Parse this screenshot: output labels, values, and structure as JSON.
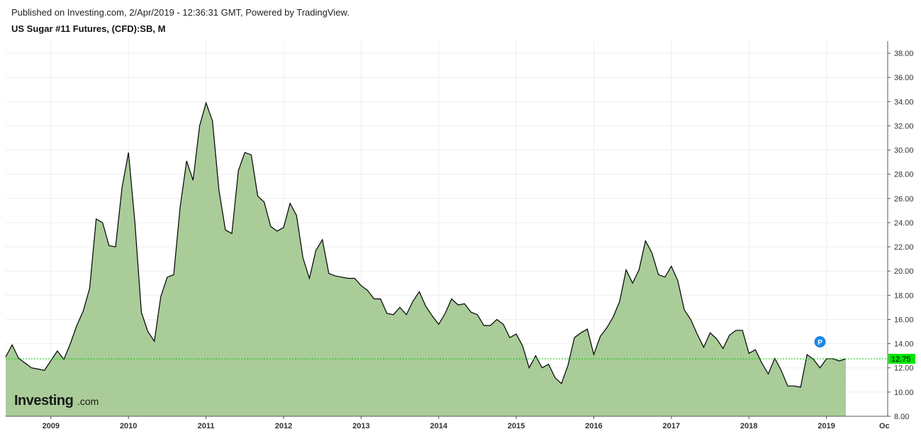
{
  "header": {
    "published": "Published on Investing.com, 2/Apr/2019 - 12:36:31 GMT, Powered by TradingView.",
    "symbol": "US Sugar #11 Futures, (CFD):SB, M"
  },
  "logo": {
    "main": "Investing",
    "suffix": ".com"
  },
  "marker": {
    "label": "P",
    "color": "#1e88e5",
    "date": "2018-12"
  },
  "colors": {
    "fill": "#a9cc99",
    "line": "#000000",
    "last_price_line": "#00cc00",
    "last_price_badge": "#00e600",
    "grid": "#eeeeee"
  },
  "chart_data": {
    "type": "area",
    "title": "US Sugar #11 Futures, (CFD):SB, M",
    "interval": "monthly",
    "last_price": "12.75",
    "ylim": [
      8,
      39
    ],
    "y_ticks": [
      "8.00",
      "10.00",
      "12.00",
      "14.00",
      "16.00",
      "18.00",
      "20.00",
      "22.00",
      "24.00",
      "26.00",
      "28.00",
      "30.00",
      "32.00",
      "34.00",
      "36.00",
      "38.00"
    ],
    "x_ticks": [
      "2009",
      "2010",
      "2011",
      "2012",
      "2013",
      "2014",
      "2015",
      "2016",
      "2017",
      "2018",
      "2019",
      "Oc"
    ],
    "grid": true,
    "series": [
      {
        "x": [
          "2008-06",
          "2008-07",
          "2008-08",
          "2008-09",
          "2008-10",
          "2008-11",
          "2008-12",
          "2009-01",
          "2009-02",
          "2009-03",
          "2009-04",
          "2009-05",
          "2009-06",
          "2009-07",
          "2009-08",
          "2009-09",
          "2009-10",
          "2009-11",
          "2009-12",
          "2010-01",
          "2010-02",
          "2010-03",
          "2010-04",
          "2010-05",
          "2010-06",
          "2010-07",
          "2010-08",
          "2010-09",
          "2010-10",
          "2010-11",
          "2010-12",
          "2011-01",
          "2011-02",
          "2011-03",
          "2011-04",
          "2011-05",
          "2011-06",
          "2011-07",
          "2011-08",
          "2011-09",
          "2011-10",
          "2011-11",
          "2011-12",
          "2012-01",
          "2012-02",
          "2012-03",
          "2012-04",
          "2012-05",
          "2012-06",
          "2012-07",
          "2012-08",
          "2012-09",
          "2012-10",
          "2012-11",
          "2012-12",
          "2013-01",
          "2013-02",
          "2013-03",
          "2013-04",
          "2013-05",
          "2013-06",
          "2013-07",
          "2013-08",
          "2013-09",
          "2013-10",
          "2013-11",
          "2013-12",
          "2014-01",
          "2014-02",
          "2014-03",
          "2014-04",
          "2014-05",
          "2014-06",
          "2014-07",
          "2014-08",
          "2014-09",
          "2014-10",
          "2014-11",
          "2014-12",
          "2015-01",
          "2015-02",
          "2015-03",
          "2015-04",
          "2015-05",
          "2015-06",
          "2015-07",
          "2015-08",
          "2015-09",
          "2015-10",
          "2015-11",
          "2015-12",
          "2016-01",
          "2016-02",
          "2016-03",
          "2016-04",
          "2016-05",
          "2016-06",
          "2016-07",
          "2016-08",
          "2016-09",
          "2016-10",
          "2016-11",
          "2016-12",
          "2017-01",
          "2017-02",
          "2017-03",
          "2017-04",
          "2017-05",
          "2017-06",
          "2017-07",
          "2017-08",
          "2017-09",
          "2017-10",
          "2017-11",
          "2017-12",
          "2018-01",
          "2018-02",
          "2018-03",
          "2018-04",
          "2018-05",
          "2018-06",
          "2018-07",
          "2018-08",
          "2018-09",
          "2018-10",
          "2018-11",
          "2018-12",
          "2019-01",
          "2019-02",
          "2019-03",
          "2019-04"
        ],
        "values": [
          12.9,
          13.9,
          12.8,
          12.4,
          12.0,
          11.9,
          11.8,
          12.6,
          13.4,
          12.7,
          14.0,
          15.5,
          16.7,
          18.6,
          24.3,
          24.0,
          22.1,
          22.0,
          26.9,
          29.8,
          24.0,
          16.6,
          15.0,
          14.2,
          17.9,
          19.5,
          19.7,
          25.3,
          29.1,
          27.5,
          32.0,
          33.9,
          32.4,
          26.7,
          23.4,
          23.1,
          28.3,
          29.8,
          29.6,
          26.2,
          25.7,
          23.7,
          23.3,
          23.6,
          25.6,
          24.6,
          21.1,
          19.4,
          21.7,
          22.6,
          19.8,
          19.6,
          19.5,
          19.4,
          19.4,
          18.8,
          18.4,
          17.7,
          17.7,
          16.5,
          16.4,
          17.0,
          16.4,
          17.5,
          18.3,
          17.1,
          16.3,
          15.6,
          16.5,
          17.7,
          17.2,
          17.3,
          16.6,
          16.4,
          15.5,
          15.5,
          16.0,
          15.6,
          14.5,
          14.8,
          13.8,
          12.0,
          13.0,
          12.0,
          12.3,
          11.2,
          10.7,
          12.2,
          14.5,
          14.9,
          15.2,
          13.1,
          14.6,
          15.3,
          16.2,
          17.5,
          20.1,
          19.0,
          20.1,
          22.5,
          21.5,
          19.7,
          19.5,
          20.4,
          19.2,
          16.8,
          16.0,
          14.8,
          13.7,
          14.9,
          14.4,
          13.6,
          14.7,
          15.1,
          15.1,
          13.2,
          13.5,
          12.4,
          11.5,
          12.8,
          11.8,
          10.5,
          10.5,
          10.4,
          13.1,
          12.7,
          12.0,
          12.75,
          12.75,
          12.57,
          12.75
        ]
      }
    ]
  }
}
